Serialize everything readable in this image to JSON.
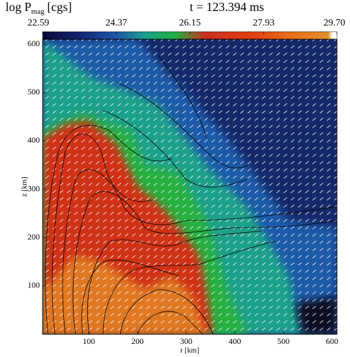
{
  "chart_data": {
    "type": "heatmap",
    "title": {
      "main": "log P",
      "sub": "mag",
      "unit": "[cgs]"
    },
    "time_label": "t = 123.394 ms",
    "colorbar": {
      "lim": [
        22.59,
        29.7
      ],
      "ticks": [
        22.59,
        24.37,
        26.15,
        27.93,
        {
          "value": 29.7,
          "label": "29.70"
        }
      ]
    },
    "xlabel": "r [km]",
    "ylabel": "z [km]",
    "xlim": [
      5,
      610
    ],
    "ylim": [
      0,
      610
    ],
    "xticks": [
      100,
      200,
      300,
      400,
      500,
      600
    ],
    "yticks": [
      100,
      200,
      300,
      400,
      500,
      600
    ]
  }
}
